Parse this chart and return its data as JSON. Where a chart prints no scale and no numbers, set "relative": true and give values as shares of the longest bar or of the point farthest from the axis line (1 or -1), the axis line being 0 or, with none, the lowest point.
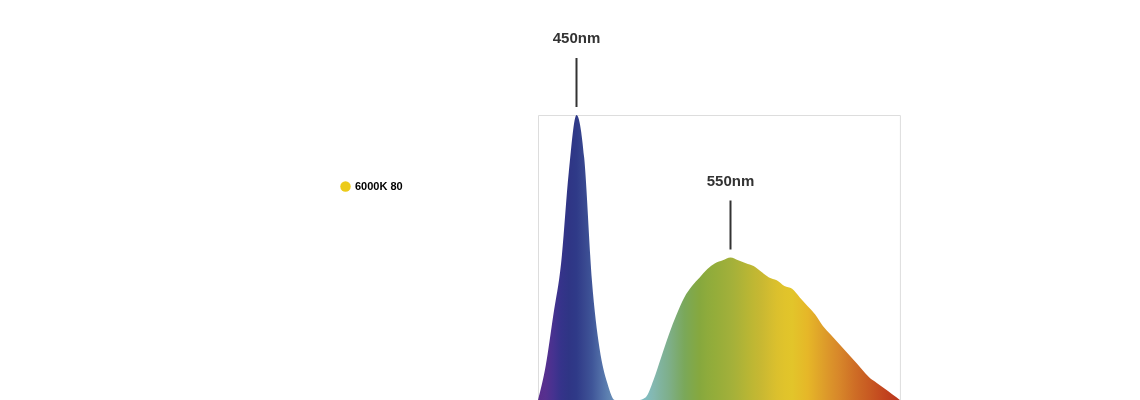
{
  "chart_data": {
    "type": "area",
    "relative": true,
    "legend": "left",
    "categories": [
      null,
      null,
      null,
      null,
      null,
      null,
      null,
      null,
      null,
      null,
      null,
      null,
      null,
      null,
      null,
      null,
      null,
      null,
      null,
      null,
      null,
      null,
      null,
      null,
      null,
      null,
      null,
      null,
      null,
      null,
      null,
      null,
      null,
      null,
      null,
      null,
      null,
      null,
      null,
      null,
      null,
      null,
      null,
      null,
      null,
      null,
      null,
      null
    ],
    "series": [
      {
        "name": "6000K 80",
        "color": "#eccb1a",
        "values": [
          0,
          0.12,
          0.3,
          0.48,
          0.8,
          1,
          0.85,
          0.42,
          0.18,
          0.06,
          0,
          0,
          0,
          0,
          0.01,
          0.07,
          0.15,
          0.23,
          0.3,
          0.36,
          0.4,
          0.43,
          0.46,
          0.48,
          0.49,
          0.5,
          0.49,
          0.48,
          0.47,
          0.45,
          0.43,
          0.42,
          0.4,
          0.39,
          0.36,
          0.33,
          0.3,
          0.26,
          0.23,
          0.2,
          0.17,
          0.14,
          0.11,
          0.08,
          0.06,
          0.04,
          0.02,
          0
        ],
        "colors": [
          "#5a2d8c",
          "#56308f",
          "#463290",
          "#35338a",
          "#2f3585",
          "#2f3a88",
          "#38478f",
          "#3f5598",
          "#4e6aa5",
          "#5c7fb0",
          "#6a90b8",
          "#72a0bc",
          "#78acbe",
          "#7db6c0",
          "#80bcc0",
          "#84b8b0",
          "#80b39c",
          "#7eaf8a",
          "#7cab72",
          "#7aa85a",
          "#80a84b",
          "#86a83e",
          "#8eab3c",
          "#94ad3a",
          "#9bae3a",
          "#a2b03a",
          "#abb238",
          "#b5b535",
          "#bfb733",
          "#c8b832",
          "#d2bc30",
          "#dbc02d",
          "#e0c32b",
          "#e2c52a",
          "#e4be29",
          "#e6b728",
          "#e2ab29",
          "#de9f2a",
          "#db932a",
          "#d8882a",
          "#d37c28",
          "#cf6f26",
          "#cb6424",
          "#c85a22",
          "#c54f20",
          "#c2441e",
          "#bd3c1d",
          "#b8341c"
        ]
      }
    ],
    "annotations": [
      "450nm",
      "550nm"
    ]
  }
}
